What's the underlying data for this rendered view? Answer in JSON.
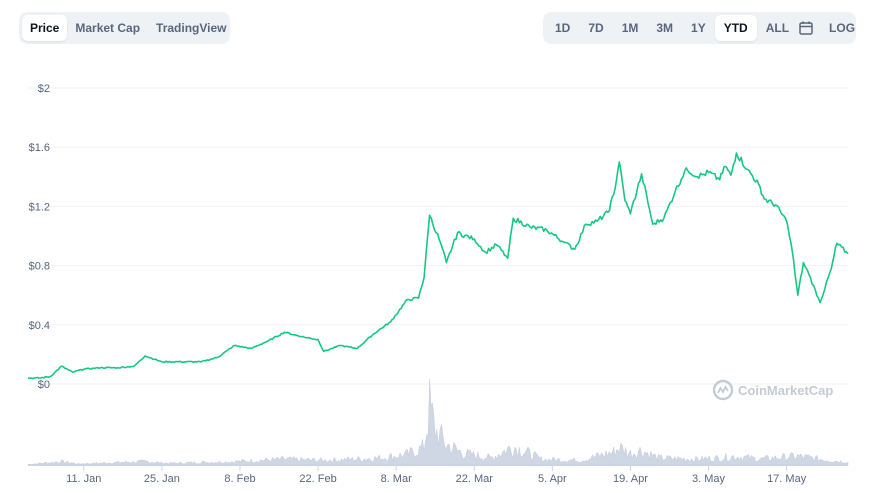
{
  "tabs": [
    {
      "label": "Price",
      "active": true
    },
    {
      "label": "Market Cap",
      "active": false
    },
    {
      "label": "TradingView",
      "active": false
    }
  ],
  "ranges": [
    {
      "label": "1D",
      "active": false
    },
    {
      "label": "7D",
      "active": false
    },
    {
      "label": "1M",
      "active": false
    },
    {
      "label": "3M",
      "active": false
    },
    {
      "label": "1Y",
      "active": false
    },
    {
      "label": "YTD",
      "active": true
    },
    {
      "label": "ALL",
      "active": false
    }
  ],
  "scale_toggle_label": "LOG",
  "watermark": "CoinMarketCap",
  "colors": {
    "line": "#16c784",
    "volume": "#cfd6e4",
    "grid": "#eff2f5",
    "text": "#58667e"
  },
  "chart_data": {
    "type": "line",
    "title": "",
    "xlabel": "",
    "ylabel": "",
    "ylim": [
      0,
      2
    ],
    "yticks": [
      "$0",
      "$0.4",
      "$0.8",
      "$1.2",
      "$1.6",
      "$2"
    ],
    "ytick_values": [
      0,
      0.4,
      0.8,
      1.2,
      1.6,
      2
    ],
    "xticks": [
      "11. Jan",
      "25. Jan",
      "8. Feb",
      "22. Feb",
      "8. Mar",
      "22. Mar",
      "5. Apr",
      "19. Apr",
      "3. May",
      "17. May"
    ],
    "xtick_dates": [
      "2021-01-11",
      "2021-01-25",
      "2021-02-08",
      "2021-02-22",
      "2021-03-08",
      "2021-03-22",
      "2021-04-05",
      "2021-04-19",
      "2021-05-03",
      "2021-05-17"
    ],
    "x_range": [
      "2021-01-01",
      "2021-05-28"
    ],
    "grid": true,
    "series": [
      {
        "values": [
          {
            "date": "2021-01-01",
            "price": 0.04
          },
          {
            "date": "2021-01-03",
            "price": 0.04
          },
          {
            "date": "2021-01-05",
            "price": 0.05
          },
          {
            "date": "2021-01-07",
            "price": 0.12
          },
          {
            "date": "2021-01-09",
            "price": 0.08
          },
          {
            "date": "2021-01-11",
            "price": 0.1
          },
          {
            "date": "2021-01-14",
            "price": 0.11
          },
          {
            "date": "2021-01-17",
            "price": 0.11
          },
          {
            "date": "2021-01-20",
            "price": 0.12
          },
          {
            "date": "2021-01-22",
            "price": 0.19
          },
          {
            "date": "2021-01-25",
            "price": 0.15
          },
          {
            "date": "2021-01-28",
            "price": 0.15
          },
          {
            "date": "2021-02-01",
            "price": 0.15
          },
          {
            "date": "2021-02-04",
            "price": 0.18
          },
          {
            "date": "2021-02-07",
            "price": 0.26
          },
          {
            "date": "2021-02-10",
            "price": 0.24
          },
          {
            "date": "2021-02-13",
            "price": 0.29
          },
          {
            "date": "2021-02-16",
            "price": 0.35
          },
          {
            "date": "2021-02-19",
            "price": 0.32
          },
          {
            "date": "2021-02-22",
            "price": 0.3
          },
          {
            "date": "2021-02-23",
            "price": 0.22
          },
          {
            "date": "2021-02-26",
            "price": 0.26
          },
          {
            "date": "2021-03-01",
            "price": 0.24
          },
          {
            "date": "2021-03-04",
            "price": 0.34
          },
          {
            "date": "2021-03-07",
            "price": 0.42
          },
          {
            "date": "2021-03-10",
            "price": 0.57
          },
          {
            "date": "2021-03-12",
            "price": 0.58
          },
          {
            "date": "2021-03-13",
            "price": 0.72
          },
          {
            "date": "2021-03-14",
            "price": 1.14
          },
          {
            "date": "2021-03-16",
            "price": 0.95
          },
          {
            "date": "2021-03-17",
            "price": 0.82
          },
          {
            "date": "2021-03-19",
            "price": 1.02
          },
          {
            "date": "2021-03-22",
            "price": 0.98
          },
          {
            "date": "2021-03-24",
            "price": 0.89
          },
          {
            "date": "2021-03-26",
            "price": 0.94
          },
          {
            "date": "2021-03-28",
            "price": 0.85
          },
          {
            "date": "2021-03-29",
            "price": 1.12
          },
          {
            "date": "2021-04-01",
            "price": 1.06
          },
          {
            "date": "2021-04-04",
            "price": 1.04
          },
          {
            "date": "2021-04-07",
            "price": 0.96
          },
          {
            "date": "2021-04-09",
            "price": 0.91
          },
          {
            "date": "2021-04-11",
            "price": 1.08
          },
          {
            "date": "2021-04-13",
            "price": 1.1
          },
          {
            "date": "2021-04-15",
            "price": 1.16
          },
          {
            "date": "2021-04-16",
            "price": 1.28
          },
          {
            "date": "2021-04-17",
            "price": 1.5
          },
          {
            "date": "2021-04-18",
            "price": 1.24
          },
          {
            "date": "2021-04-19",
            "price": 1.15
          },
          {
            "date": "2021-04-21",
            "price": 1.42
          },
          {
            "date": "2021-04-23",
            "price": 1.08
          },
          {
            "date": "2021-04-25",
            "price": 1.12
          },
          {
            "date": "2021-04-27",
            "price": 1.3
          },
          {
            "date": "2021-04-29",
            "price": 1.46
          },
          {
            "date": "2021-05-01",
            "price": 1.4
          },
          {
            "date": "2021-05-03",
            "price": 1.43
          },
          {
            "date": "2021-05-05",
            "price": 1.38
          },
          {
            "date": "2021-05-06",
            "price": 1.47
          },
          {
            "date": "2021-05-07",
            "price": 1.41
          },
          {
            "date": "2021-05-08",
            "price": 1.56
          },
          {
            "date": "2021-05-10",
            "price": 1.45
          },
          {
            "date": "2021-05-12",
            "price": 1.35
          },
          {
            "date": "2021-05-13",
            "price": 1.25
          },
          {
            "date": "2021-05-15",
            "price": 1.21
          },
          {
            "date": "2021-05-17",
            "price": 1.1
          },
          {
            "date": "2021-05-18",
            "price": 0.9
          },
          {
            "date": "2021-05-19",
            "price": 0.6
          },
          {
            "date": "2021-05-20",
            "price": 0.82
          },
          {
            "date": "2021-05-21",
            "price": 0.74
          },
          {
            "date": "2021-05-23",
            "price": 0.55
          },
          {
            "date": "2021-05-25",
            "price": 0.78
          },
          {
            "date": "2021-05-26",
            "price": 0.95
          },
          {
            "date": "2021-05-28",
            "price": 0.88
          }
        ]
      }
    ],
    "volume_series": [
      {
        "date": "2021-01-01",
        "v": 0.01
      },
      {
        "date": "2021-01-07",
        "v": 0.06
      },
      {
        "date": "2021-01-10",
        "v": 0.02
      },
      {
        "date": "2021-01-22",
        "v": 0.06
      },
      {
        "date": "2021-01-26",
        "v": 0.03
      },
      {
        "date": "2021-02-07",
        "v": 0.06
      },
      {
        "date": "2021-02-16",
        "v": 0.1
      },
      {
        "date": "2021-02-23",
        "v": 0.08
      },
      {
        "date": "2021-03-05",
        "v": 0.12
      },
      {
        "date": "2021-03-10",
        "v": 0.18
      },
      {
        "date": "2021-03-13",
        "v": 0.3
      },
      {
        "date": "2021-03-14",
        "v": 1.0
      },
      {
        "date": "2021-03-15",
        "v": 0.6
      },
      {
        "date": "2021-03-17",
        "v": 0.35
      },
      {
        "date": "2021-03-20",
        "v": 0.2
      },
      {
        "date": "2021-03-25",
        "v": 0.12
      },
      {
        "date": "2021-03-29",
        "v": 0.32
      },
      {
        "date": "2021-04-03",
        "v": 0.1
      },
      {
        "date": "2021-04-10",
        "v": 0.08
      },
      {
        "date": "2021-04-16",
        "v": 0.22
      },
      {
        "date": "2021-04-17",
        "v": 0.3
      },
      {
        "date": "2021-04-19",
        "v": 0.2
      },
      {
        "date": "2021-04-21",
        "v": 0.25
      },
      {
        "date": "2021-04-24",
        "v": 0.12
      },
      {
        "date": "2021-05-01",
        "v": 0.1
      },
      {
        "date": "2021-05-05",
        "v": 0.12
      },
      {
        "date": "2021-05-08",
        "v": 0.15
      },
      {
        "date": "2021-05-12",
        "v": 0.1
      },
      {
        "date": "2021-05-19",
        "v": 0.15
      },
      {
        "date": "2021-05-23",
        "v": 0.1
      },
      {
        "date": "2021-05-28",
        "v": 0.05
      }
    ]
  }
}
